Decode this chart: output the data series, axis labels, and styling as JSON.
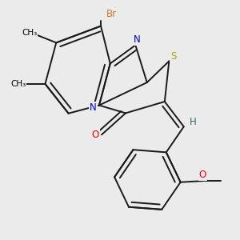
{
  "background_color": "#ebebeb",
  "atom_colors": {
    "C": "#000000",
    "N": "#0000cc",
    "S": "#aaaa00",
    "O": "#ff0000",
    "Br": "#cc7722",
    "H": "#336666"
  },
  "bond_color": "#1a1a1a",
  "bond_width": 1.4,
  "figsize": [
    3.0,
    3.0
  ],
  "dpi": 100
}
